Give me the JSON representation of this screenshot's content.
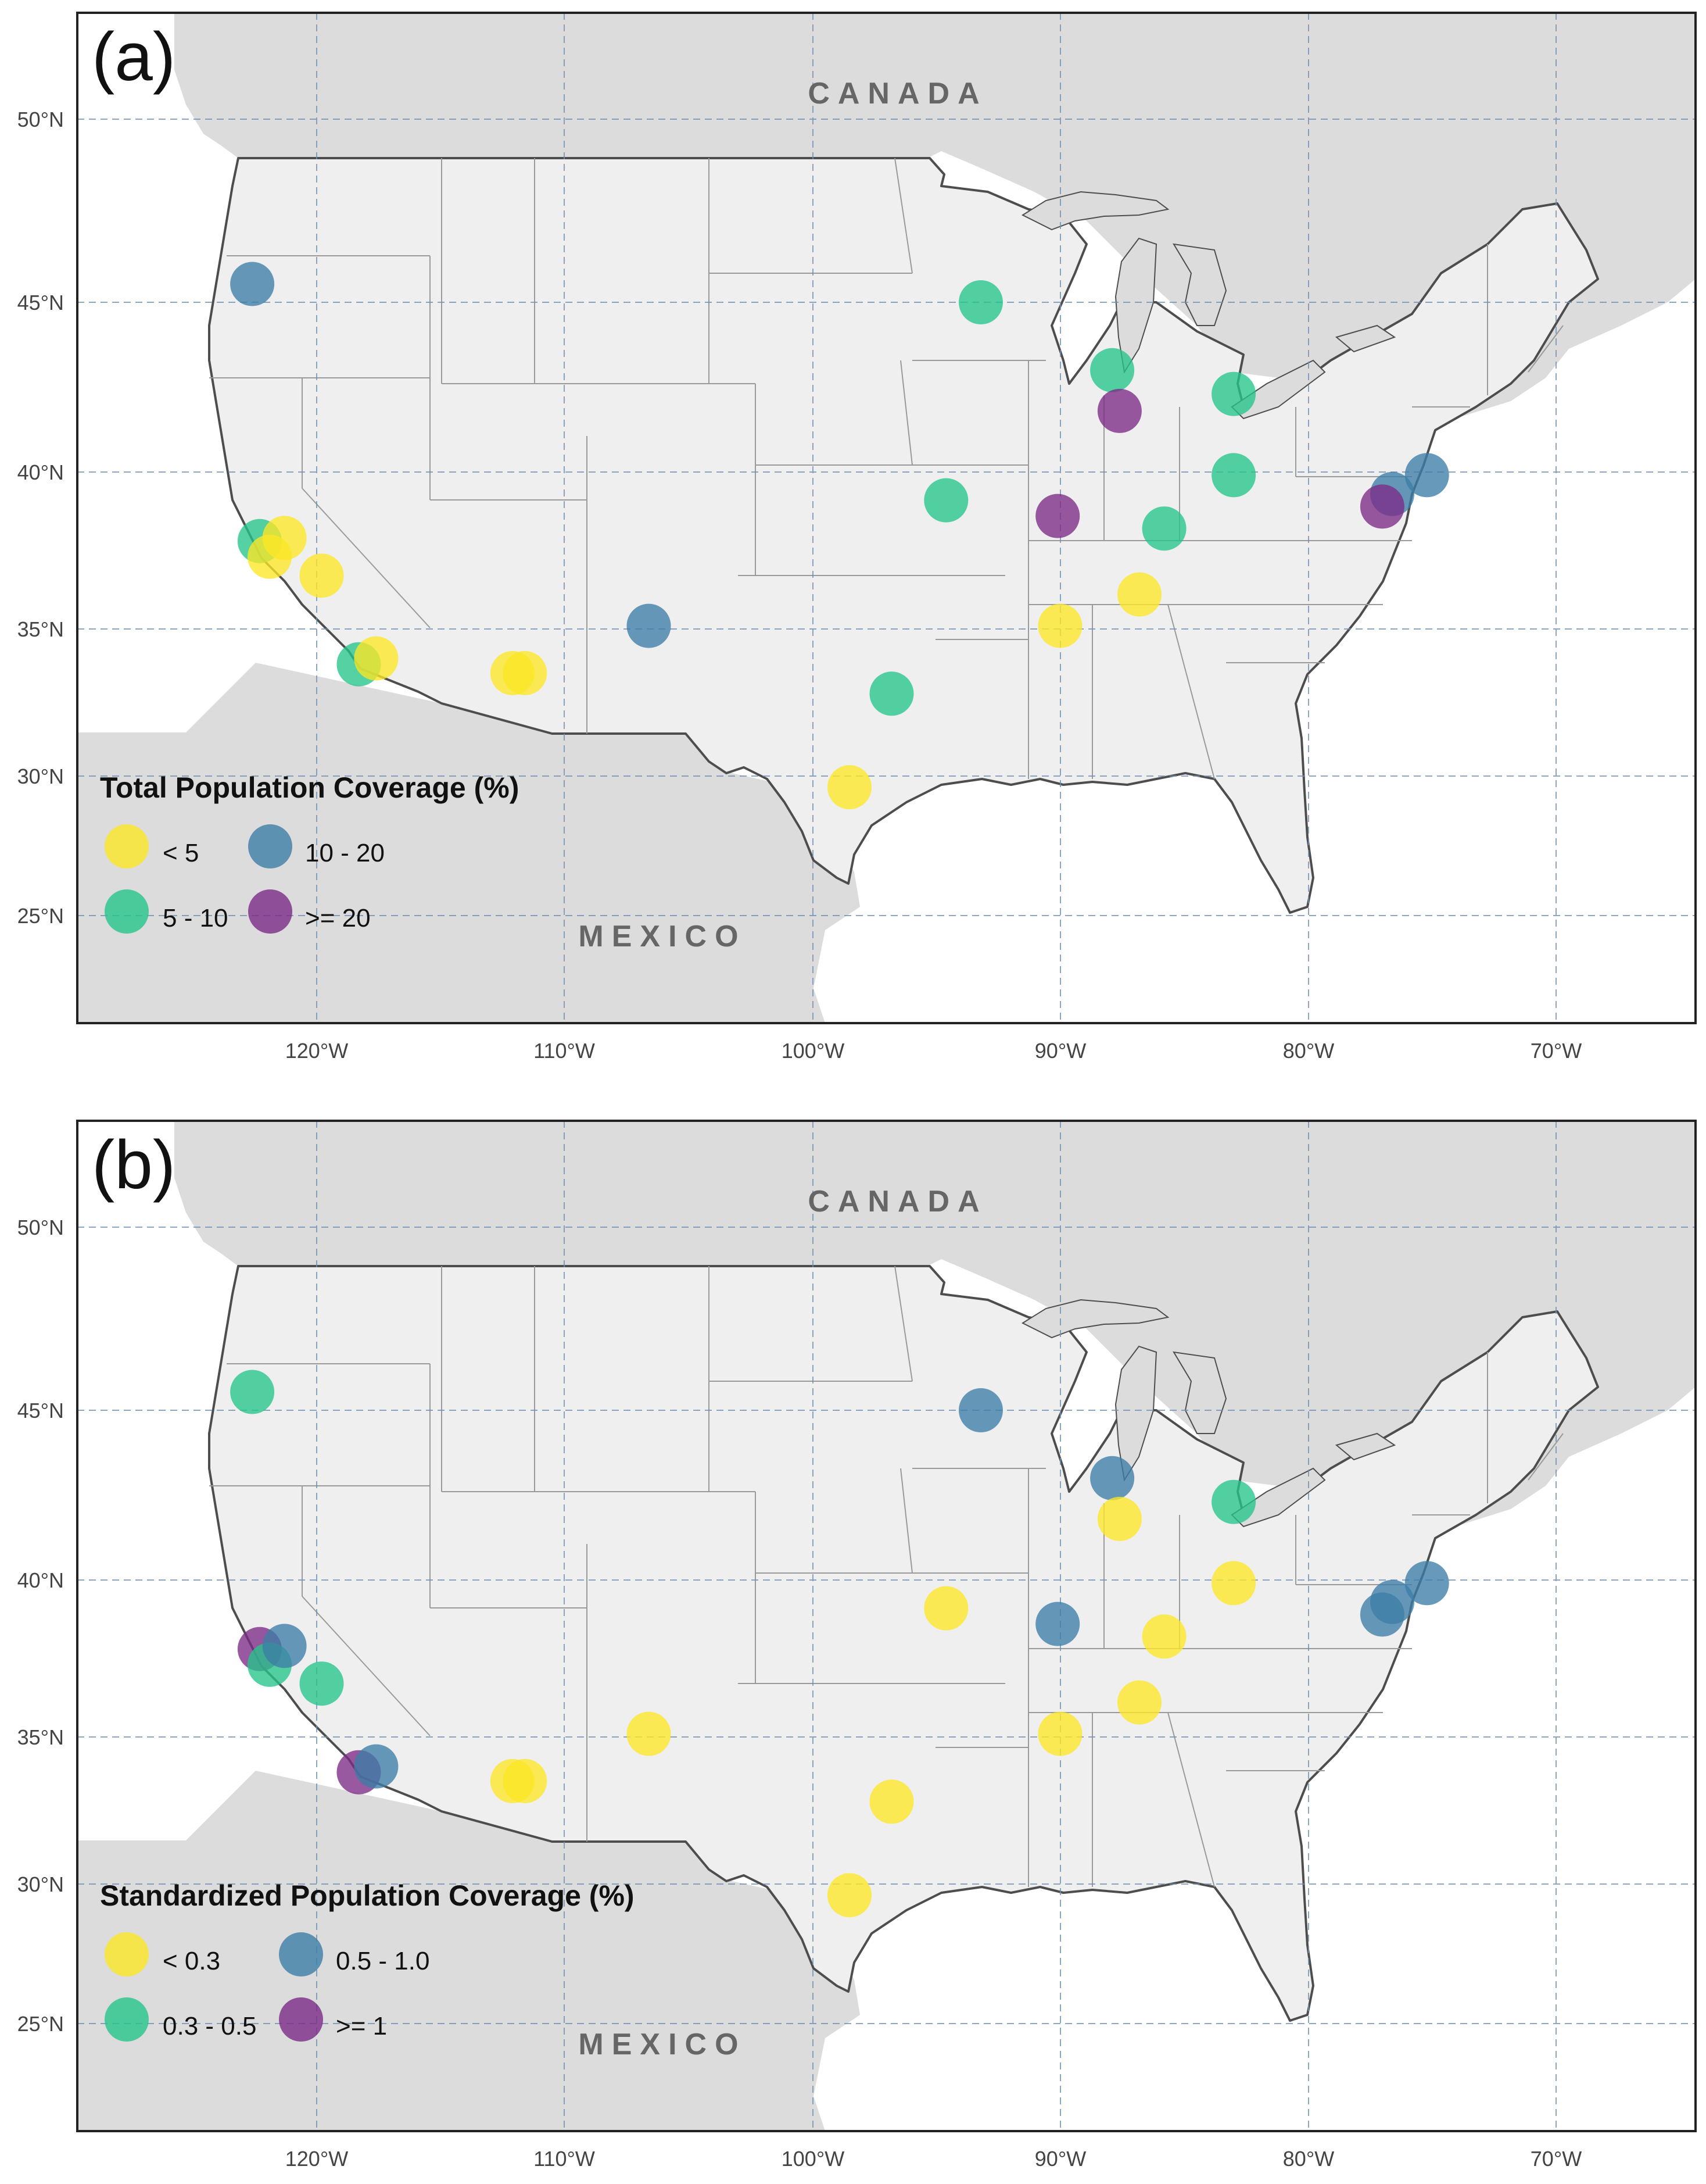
{
  "figure": {
    "colors": {
      "yellow": "#fde725",
      "teal": "#25c58a",
      "blue": "#3c7ea6",
      "purple": "#7b2a87",
      "land_us": "#efefef",
      "land_other": "#dcdcdc",
      "water": "#ffffff",
      "border": "#4d4d4d",
      "state_line": "#9a9a9a",
      "grid": "#6f8fb5"
    },
    "axes": {
      "lon_ticks": [
        {
          "value": -120,
          "label": "120°W"
        },
        {
          "value": -110,
          "label": "110°W"
        },
        {
          "value": -100,
          "label": "100°W"
        },
        {
          "value": -90,
          "label": "90°W"
        },
        {
          "value": -80,
          "label": "80°W"
        },
        {
          "value": -70,
          "label": "70°W"
        }
      ],
      "lat_ticks": [
        {
          "value": 50,
          "label": "50°N"
        },
        {
          "value": 45,
          "label": "45°N"
        },
        {
          "value": 40,
          "label": "40°N"
        },
        {
          "value": 35,
          "label": "35°N"
        },
        {
          "value": 30,
          "label": "30°N"
        },
        {
          "value": 25,
          "label": "25°N"
        }
      ]
    },
    "country_labels": {
      "north": "CANADA",
      "south": "MEXICO"
    },
    "panels": [
      {
        "id": "a",
        "label": "(a)",
        "legend": {
          "title": "Total Population Coverage (%)",
          "items": [
            {
              "label": "< 5",
              "color": "yellow"
            },
            {
              "label": "10 - 20",
              "color": "blue"
            },
            {
              "label": "5 - 10",
              "color": "teal"
            },
            {
              "label": ">= 20",
              "color": "purple"
            }
          ]
        },
        "sites": [
          {
            "lon": -122.6,
            "lat": 45.5,
            "color": "blue"
          },
          {
            "lon": -122.3,
            "lat": 37.8,
            "color": "teal"
          },
          {
            "lon": -121.9,
            "lat": 37.3,
            "color": "yellow"
          },
          {
            "lon": -121.3,
            "lat": 37.9,
            "color": "yellow"
          },
          {
            "lon": -119.8,
            "lat": 36.7,
            "color": "yellow"
          },
          {
            "lon": -118.3,
            "lat": 33.8,
            "color": "teal"
          },
          {
            "lon": -117.6,
            "lat": 34.0,
            "color": "yellow"
          },
          {
            "lon": -112.1,
            "lat": 33.5,
            "color": "yellow"
          },
          {
            "lon": -111.6,
            "lat": 33.5,
            "color": "yellow"
          },
          {
            "lon": -106.6,
            "lat": 35.1,
            "color": "blue"
          },
          {
            "lon": -98.5,
            "lat": 29.6,
            "color": "yellow"
          },
          {
            "lon": -96.8,
            "lat": 32.8,
            "color": "teal"
          },
          {
            "lon": -94.6,
            "lat": 39.1,
            "color": "teal"
          },
          {
            "lon": -93.2,
            "lat": 45.0,
            "color": "teal"
          },
          {
            "lon": -90.1,
            "lat": 38.6,
            "color": "purple"
          },
          {
            "lon": -90.0,
            "lat": 35.1,
            "color": "yellow"
          },
          {
            "lon": -87.9,
            "lat": 43.0,
            "color": "teal"
          },
          {
            "lon": -87.6,
            "lat": 41.8,
            "color": "purple"
          },
          {
            "lon": -86.8,
            "lat": 36.1,
            "color": "yellow"
          },
          {
            "lon": -85.8,
            "lat": 38.2,
            "color": "teal"
          },
          {
            "lon": -83.0,
            "lat": 42.3,
            "color": "teal"
          },
          {
            "lon": -83.0,
            "lat": 39.9,
            "color": "teal"
          },
          {
            "lon": -76.6,
            "lat": 39.3,
            "color": "blue"
          },
          {
            "lon": -77.0,
            "lat": 38.9,
            "color": "purple"
          },
          {
            "lon": -75.2,
            "lat": 39.9,
            "color": "blue"
          }
        ]
      },
      {
        "id": "b",
        "label": "(b)",
        "legend": {
          "title": "Standardized Population Coverage (%)",
          "items": [
            {
              "label": "< 0.3",
              "color": "yellow"
            },
            {
              "label": "0.5 - 1.0",
              "color": "blue"
            },
            {
              "label": "0.3 - 0.5",
              "color": "teal"
            },
            {
              "label": ">= 1",
              "color": "purple"
            }
          ]
        },
        "sites": [
          {
            "lon": -122.6,
            "lat": 45.5,
            "color": "teal"
          },
          {
            "lon": -122.3,
            "lat": 37.8,
            "color": "purple"
          },
          {
            "lon": -121.9,
            "lat": 37.3,
            "color": "teal"
          },
          {
            "lon": -121.3,
            "lat": 37.9,
            "color": "blue"
          },
          {
            "lon": -119.8,
            "lat": 36.7,
            "color": "teal"
          },
          {
            "lon": -118.3,
            "lat": 33.8,
            "color": "purple"
          },
          {
            "lon": -117.6,
            "lat": 34.0,
            "color": "blue"
          },
          {
            "lon": -112.1,
            "lat": 33.5,
            "color": "yellow"
          },
          {
            "lon": -111.6,
            "lat": 33.5,
            "color": "yellow"
          },
          {
            "lon": -106.6,
            "lat": 35.1,
            "color": "yellow"
          },
          {
            "lon": -98.5,
            "lat": 29.6,
            "color": "yellow"
          },
          {
            "lon": -96.8,
            "lat": 32.8,
            "color": "yellow"
          },
          {
            "lon": -94.6,
            "lat": 39.1,
            "color": "yellow"
          },
          {
            "lon": -93.2,
            "lat": 45.0,
            "color": "blue"
          },
          {
            "lon": -90.1,
            "lat": 38.6,
            "color": "blue"
          },
          {
            "lon": -90.0,
            "lat": 35.1,
            "color": "yellow"
          },
          {
            "lon": -87.9,
            "lat": 43.0,
            "color": "blue"
          },
          {
            "lon": -87.6,
            "lat": 41.8,
            "color": "yellow"
          },
          {
            "lon": -86.8,
            "lat": 36.1,
            "color": "yellow"
          },
          {
            "lon": -85.8,
            "lat": 38.2,
            "color": "yellow"
          },
          {
            "lon": -83.0,
            "lat": 42.3,
            "color": "teal"
          },
          {
            "lon": -83.0,
            "lat": 39.9,
            "color": "yellow"
          },
          {
            "lon": -77.0,
            "lat": 38.9,
            "color": "blue"
          },
          {
            "lon": -76.6,
            "lat": 39.3,
            "color": "blue"
          },
          {
            "lon": -75.2,
            "lat": 39.9,
            "color": "blue"
          }
        ]
      }
    ]
  }
}
